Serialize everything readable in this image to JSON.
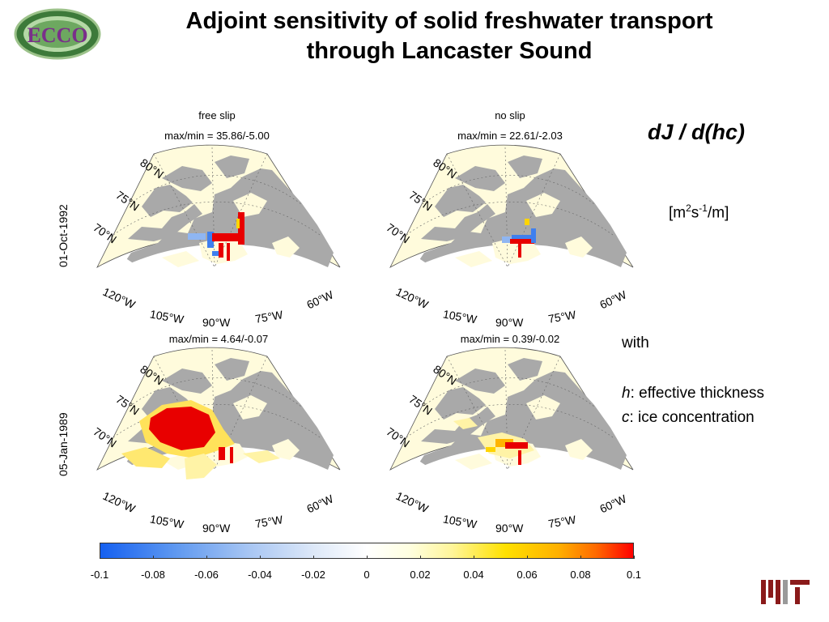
{
  "title_line1": "Adjoint sensitivity of solid freshwater transport",
  "title_line2": "through Lancaster Sound",
  "logo": {
    "name": "ECCO"
  },
  "panels": [
    {
      "top_label": "free slip",
      "maxmin": "max/min = 35.86/-5.00"
    },
    {
      "top_label": "no slip",
      "maxmin": "max/min = 22.61/-2.03"
    },
    {
      "top_label": "",
      "maxmin": "max/min =  4.64/-0.07"
    },
    {
      "top_label": "",
      "maxmin": "max/min =  0.39/-0.02"
    }
  ],
  "row_labels": [
    "01-Oct-1992",
    "05-Jan-1989"
  ],
  "lat_labels": [
    "80°N",
    "75°N",
    "70°N"
  ],
  "lon_labels": [
    "120°W",
    "105°W",
    "90°W",
    "75°W",
    "60°W"
  ],
  "quantity": "dJ / d(hc)",
  "units": {
    "base": "[m",
    "sup1": "2",
    "mid": "s",
    "sup2": "-1",
    "end": "/m]"
  },
  "legend": {
    "with": "with",
    "h_sym": "h",
    "h_text": ": effective thickness",
    "c_sym": "c",
    "c_text": ": ice concentration"
  },
  "colorbar": {
    "ticks": [
      "-0.1",
      "-0.08",
      "-0.06",
      "-0.04",
      "-0.02",
      "0",
      "0.02",
      "0.04",
      "0.06",
      "0.08",
      "0.1"
    ],
    "range": [
      -0.1,
      0.1
    ]
  },
  "colors": {
    "land": "#a9a9a9",
    "ocean": "#fffbdc",
    "positive": "#ff0000",
    "negative": "#3f7fee"
  },
  "footer_logo": "MIT"
}
